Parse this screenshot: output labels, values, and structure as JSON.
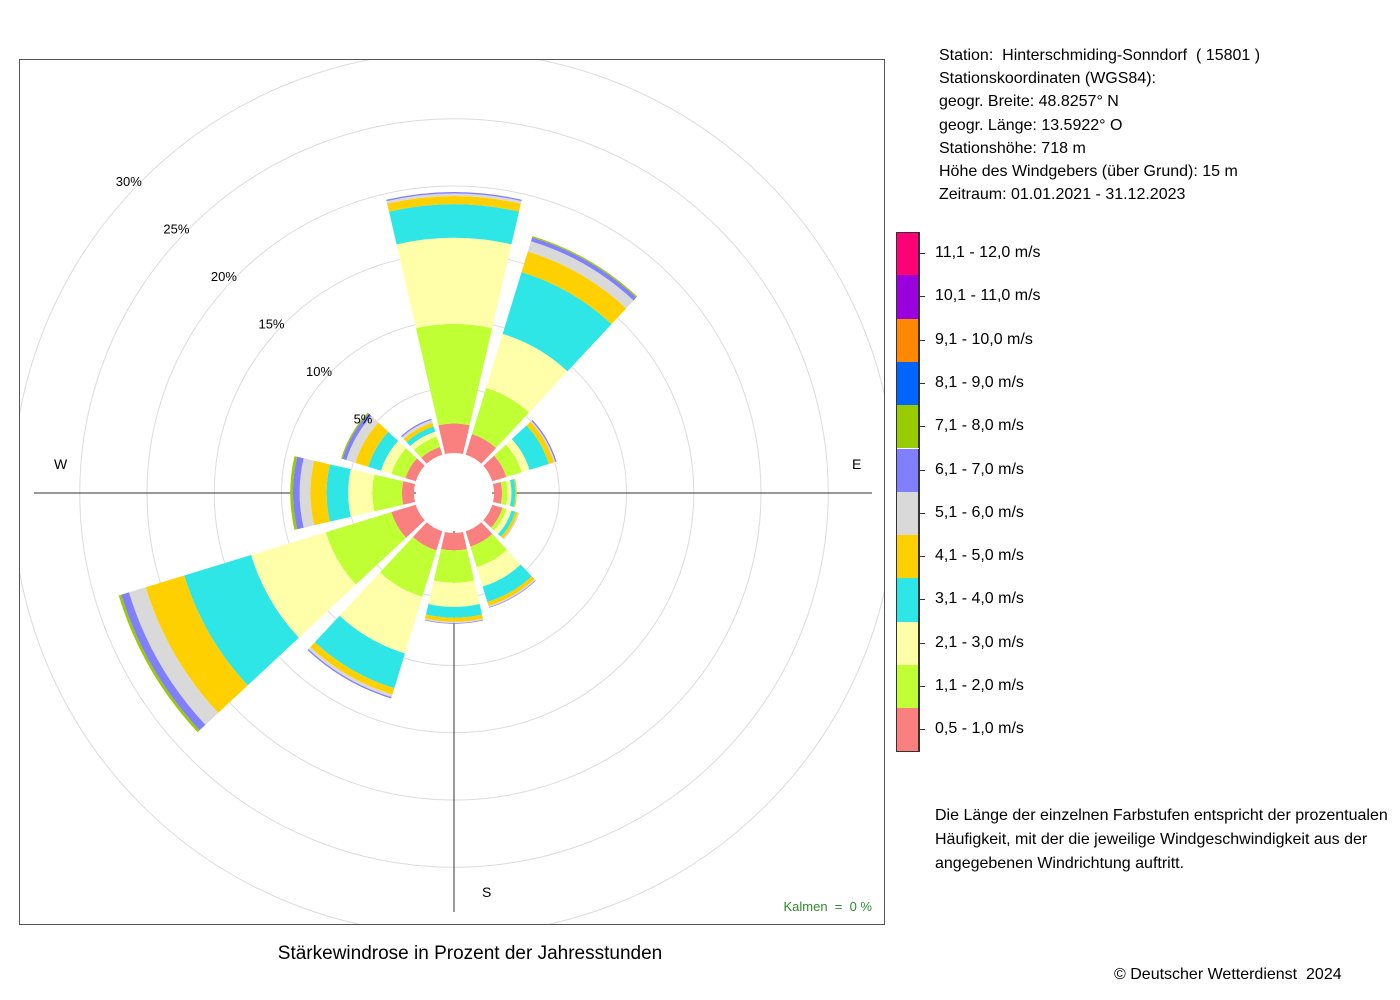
{
  "chart_data": {
    "type": "wind-rose",
    "title": "Stärkewindrose in Prozent der Jahresstunden",
    "compass": {
      "north": "",
      "east": "E",
      "south": "S",
      "west": "W"
    },
    "ring_labels": [
      "5%",
      "10%",
      "15%",
      "20%",
      "25%",
      "30%"
    ],
    "ring_values": [
      5,
      10,
      15,
      20,
      25,
      30
    ],
    "calm_text": "Kalmen  =  0 %",
    "speed_classes": [
      {
        "label": "0,5 - 1,0 m/s",
        "color": "#fa8080"
      },
      {
        "label": "1,1 - 2,0 m/s",
        "color": "#bfff33"
      },
      {
        "label": "2,1 - 3,0 m/s",
        "color": "#ffffaa"
      },
      {
        "label": "3,1 - 4,0 m/s",
        "color": "#2ee6e6"
      },
      {
        "label": "4,1 - 5,0 m/s",
        "color": "#ffd000"
      },
      {
        "label": "5,1 - 6,0 m/s",
        "color": "#d9d9d9"
      },
      {
        "label": "6,1 - 7,0 m/s",
        "color": "#8080ff"
      },
      {
        "label": "7,1 - 8,0 m/s",
        "color": "#99cc00"
      },
      {
        "label": "8,1 - 9,0 m/s",
        "color": "#0066ff"
      },
      {
        "label": "9,1 - 10,0 m/s",
        "color": "#ff8800"
      },
      {
        "label": "10,1 - 11,0 m/s",
        "color": "#9900dd"
      },
      {
        "label": "11,1 - 12,0 m/s",
        "color": "#ff0077"
      }
    ],
    "directions_deg": [
      0,
      30,
      60,
      90,
      120,
      150,
      180,
      210,
      240,
      270,
      300,
      330
    ],
    "values": [
      [
        2.2,
        7.4,
        6.4,
        2.5,
        0.6,
        0.2,
        0.1,
        0.0,
        0,
        0,
        0,
        0
      ],
      [
        1.6,
        3.6,
        4.2,
        4.8,
        1.6,
        0.8,
        0.3,
        0.1,
        0,
        0,
        0,
        0
      ],
      [
        1.1,
        1.2,
        0.6,
        1.5,
        0.4,
        0.1,
        0.1,
        0.0,
        0,
        0,
        0,
        0
      ],
      [
        0.6,
        0.4,
        0.3,
        0.3,
        0.1,
        0.0,
        0.0,
        0.0,
        0,
        0,
        0,
        0
      ],
      [
        0.8,
        0.3,
        0.4,
        0.3,
        0.2,
        0.1,
        0.0,
        0.0,
        0,
        0,
        0,
        0
      ],
      [
        1.2,
        1.6,
        1.5,
        1.2,
        0.3,
        0.1,
        0.05,
        0.0,
        0,
        0,
        0,
        0
      ],
      [
        1.3,
        2.4,
        1.8,
        0.8,
        0.3,
        0.1,
        0.05,
        0.0,
        0,
        0,
        0,
        0
      ],
      [
        1.5,
        3.6,
        4.4,
        2.7,
        0.5,
        0.2,
        0.1,
        0.0,
        0,
        0,
        0,
        0
      ],
      [
        1.9,
        5.1,
        5.8,
        5.2,
        3.0,
        1.3,
        0.6,
        0.2,
        0,
        0,
        0,
        0
      ],
      [
        0.9,
        2.2,
        1.8,
        1.6,
        1.2,
        0.8,
        0.5,
        0.2,
        0,
        0,
        0,
        0
      ],
      [
        0.8,
        1.1,
        0.8,
        1.0,
        1.0,
        0.7,
        0.3,
        0.1,
        0,
        0,
        0,
        0
      ],
      [
        0.6,
        0.8,
        0.4,
        0.4,
        0.3,
        0.2,
        0.1,
        0.0,
        0,
        0,
        0,
        0
      ]
    ]
  },
  "station": {
    "lines": [
      "Station:  Hinterschmiding-Sonndorf  ( 15801 )",
      "Stationskoordinaten (WGS84):",
      "geogr. Breite: 48.8257° N",
      "geogr. Länge: 13.5922° O",
      "Stationshöhe: 718 m",
      "Höhe des Windgebers (über Grund): 15 m",
      "Zeitraum: 01.01.2021 - 31.12.2023"
    ]
  },
  "explanation": "Die Länge der einzelnen Farbstufen entspricht der prozentualen Häufigkeit, mit der die jeweilige Windgeschwindigkeit aus der angegebenen Windrichtung auftritt.",
  "copyright": "© Deutscher Wetterdienst  2024"
}
